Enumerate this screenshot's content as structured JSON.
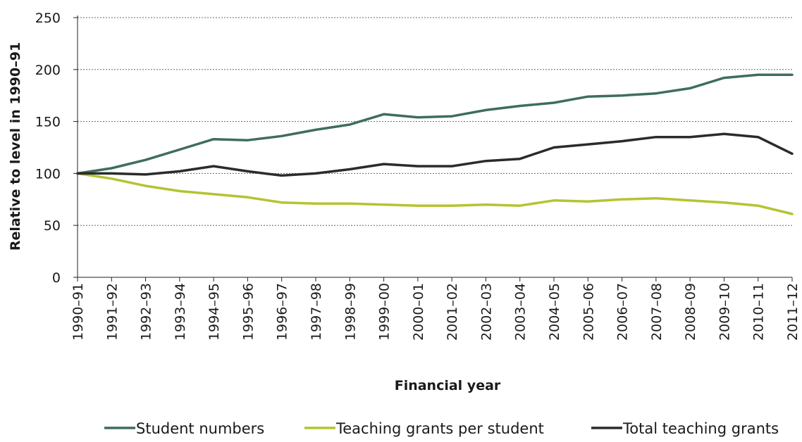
{
  "chart_data": {
    "type": "line",
    "title": "",
    "xlabel": "Financial year",
    "ylabel": "Relative to level in 1990–91",
    "ylim": [
      0,
      250
    ],
    "yticks": [
      0,
      50,
      100,
      150,
      200,
      250
    ],
    "grid": "horizontal dotted",
    "legend_position": "bottom",
    "categories": [
      "1990–91",
      "1991–92",
      "1992–93",
      "1993–94",
      "1994–95",
      "1995–96",
      "1996–97",
      "1997–98",
      "1998–99",
      "1999–00",
      "2000–01",
      "2001–02",
      "2002–03",
      "2003–04",
      "2004–05",
      "2005–06",
      "2006–07",
      "2007–08",
      "2008–09",
      "2009–10",
      "2010–11",
      "2011–12"
    ],
    "series": [
      {
        "name": "Student numbers",
        "color": "#3e6e5a",
        "values": [
          100,
          105,
          113,
          123,
          133,
          132,
          136,
          142,
          147,
          157,
          154,
          155,
          161,
          165,
          168,
          174,
          175,
          177,
          182,
          192,
          195,
          195
        ]
      },
      {
        "name": "Teaching grants per student",
        "color": "#b4c430",
        "values": [
          100,
          95,
          88,
          83,
          80,
          77,
          72,
          71,
          71,
          70,
          69,
          69,
          70,
          69,
          74,
          73,
          75,
          76,
          74,
          72,
          69,
          61
        ]
      },
      {
        "name": "Total teaching grants",
        "color": "#2b2b2b",
        "values": [
          100,
          100,
          99,
          102,
          107,
          102,
          98,
          100,
          104,
          109,
          107,
          107,
          112,
          114,
          125,
          128,
          131,
          135,
          135,
          138,
          135,
          119
        ]
      }
    ]
  }
}
